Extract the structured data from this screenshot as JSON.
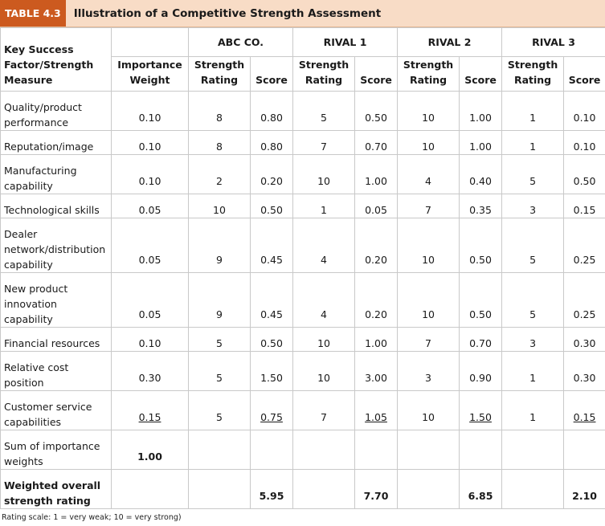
{
  "header": {
    "badge": "TABLE 4.3",
    "title": "Illustration of a Competitive Strength Assessment"
  },
  "columns": {
    "kfs_header": "Key Success Factor/Strength Measure",
    "weight_header": "Importance Weight",
    "groups": [
      "ABC CO.",
      "RIVAL 1",
      "RIVAL 2",
      "RIVAL 3"
    ],
    "rating_header": "Strength Rating",
    "score_header": "Score"
  },
  "rows": [
    {
      "factor": "Quality/product performance",
      "weight": "0.10",
      "cells": [
        "8",
        "0.80",
        "5",
        "0.50",
        "10",
        "1.00",
        "1",
        "0.10"
      ]
    },
    {
      "factor": "Reputation/image",
      "weight": "0.10",
      "cells": [
        "8",
        "0.80",
        "7",
        "0.70",
        "10",
        "1.00",
        "1",
        "0.10"
      ]
    },
    {
      "factor": "Manufacturing capability",
      "weight": "0.10",
      "cells": [
        "2",
        "0.20",
        "10",
        "1.00",
        "4",
        "0.40",
        "5",
        "0.50"
      ]
    },
    {
      "factor": "Technological skills",
      "weight": "0.05",
      "cells": [
        "10",
        "0.50",
        "1",
        "0.05",
        "7",
        "0.35",
        "3",
        "0.15"
      ]
    },
    {
      "factor": "Dealer network/distribution capability",
      "weight": "0.05",
      "cells": [
        "9",
        "0.45",
        "4",
        "0.20",
        "10",
        "0.50",
        "5",
        "0.25"
      ]
    },
    {
      "factor": "New product innovation capability",
      "weight": "0.05",
      "cells": [
        "9",
        "0.45",
        "4",
        "0.20",
        "10",
        "0.50",
        "5",
        "0.25"
      ]
    },
    {
      "factor": "Financial resources",
      "weight": "0.10",
      "cells": [
        "5",
        "0.50",
        "10",
        "1.00",
        "7",
        "0.70",
        "3",
        "0.30"
      ]
    },
    {
      "factor": "Relative cost position",
      "weight": "0.30",
      "cells": [
        "5",
        "1.50",
        "10",
        "3.00",
        "3",
        "0.90",
        "1",
        "0.30"
      ]
    },
    {
      "factor": "Customer service capabilities",
      "weight": "0.15",
      "cells": [
        "5",
        "0.75",
        "7",
        "1.05",
        "10",
        "1.50",
        "1",
        "0.15"
      ]
    }
  ],
  "sum_row": {
    "label": "Sum of importance weights",
    "value": "1.00"
  },
  "total_row": {
    "label": "Weighted overall strength rating",
    "scores": [
      "5.95",
      "7.70",
      "6.85",
      "2.10"
    ]
  },
  "footnote": "Rating scale: 1 = very weak; 10 = very strong)"
}
